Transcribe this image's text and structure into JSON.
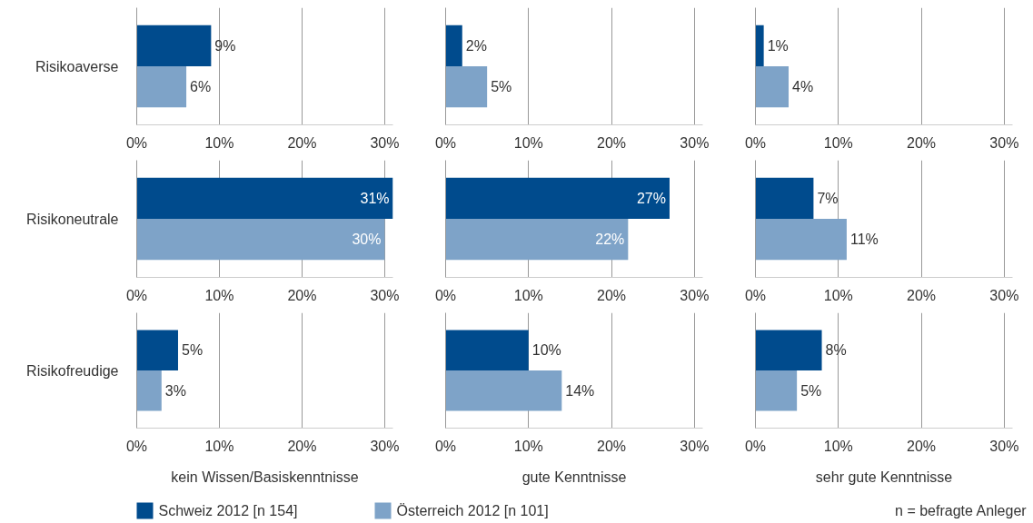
{
  "chart_data": [
    {
      "type": "bar",
      "orientation": "horizontal",
      "categories": [
        "Risikoaverse"
      ],
      "series": [
        {
          "color": "#004b8d",
          "values": [
            9
          ],
          "value_labels": [
            "9%"
          ]
        },
        {
          "color": "#7ea3c8",
          "values": [
            6
          ],
          "value_labels": [
            "6%"
          ]
        }
      ],
      "xlim": [
        0,
        31
      ],
      "xticks": [
        {
          "value": 0,
          "label": "0%"
        },
        {
          "value": 10,
          "label": "10%"
        },
        {
          "value": 20,
          "label": "20%"
        },
        {
          "value": 30,
          "label": "30%"
        }
      ],
      "grid": "x"
    },
    {
      "type": "bar",
      "orientation": "horizontal",
      "categories": [
        null
      ],
      "series": [
        {
          "color": "#004b8d",
          "values": [
            2
          ],
          "value_labels": [
            "2%"
          ]
        },
        {
          "color": "#7ea3c8",
          "values": [
            5
          ],
          "value_labels": [
            "5%"
          ]
        }
      ],
      "xlim": [
        0,
        31
      ],
      "xticks": [
        {
          "value": 0,
          "label": "0%"
        },
        {
          "value": 10,
          "label": "10%"
        },
        {
          "value": 20,
          "label": "20%"
        },
        {
          "value": 30,
          "label": "30%"
        }
      ],
      "grid": "x",
      "tick_labels": "x"
    },
    {
      "type": "bar",
      "orientation": "horizontal",
      "categories": [
        null
      ],
      "series": [
        {
          "color": "#004b8d",
          "values": [
            1
          ],
          "value_labels": [
            "1%"
          ]
        },
        {
          "color": "#7ea3c8",
          "values": [
            4
          ],
          "value_labels": [
            "4%"
          ]
        }
      ],
      "xlim": [
        0,
        31
      ],
      "xticks": [
        {
          "value": 0,
          "label": "0%"
        },
        {
          "value": 10,
          "label": "10%"
        },
        {
          "value": 20,
          "label": "20%"
        },
        {
          "value": 30,
          "label": "30%"
        }
      ],
      "grid": "x",
      "tick_labels": "x"
    },
    {
      "type": "bar",
      "orientation": "horizontal",
      "categories": [
        "Risikoneutrale"
      ],
      "series": [
        {
          "color": "#004b8d",
          "values": [
            31
          ],
          "value_labels": [
            "31%"
          ]
        },
        {
          "color": "#7ea3c8",
          "values": [
            30
          ],
          "value_labels": [
            "30%"
          ]
        }
      ],
      "xlim": [
        0,
        31
      ],
      "xticks": [
        {
          "value": 0,
          "label": "0%"
        },
        {
          "value": 10,
          "label": "10%"
        },
        {
          "value": 20,
          "label": "20%"
        },
        {
          "value": 30,
          "label": "30%"
        }
      ],
      "grid": "x"
    },
    {
      "type": "bar",
      "orientation": "horizontal",
      "categories": [
        null
      ],
      "series": [
        {
          "color": "#004b8d",
          "values": [
            27
          ],
          "value_labels": [
            "27%"
          ]
        },
        {
          "color": "#7ea3c8",
          "values": [
            22
          ],
          "value_labels": [
            "22%"
          ]
        }
      ],
      "xlim": [
        0,
        31
      ],
      "xticks": [
        {
          "value": 0,
          "label": "0%"
        },
        {
          "value": 10,
          "label": "10%"
        },
        {
          "value": 20,
          "label": "20%"
        },
        {
          "value": 30,
          "label": "30%"
        }
      ],
      "grid": "x",
      "tick_labels": "x"
    },
    {
      "type": "bar",
      "orientation": "horizontal",
      "categories": [
        null
      ],
      "series": [
        {
          "color": "#004b8d",
          "values": [
            7
          ],
          "value_labels": [
            "7%"
          ]
        },
        {
          "color": "#7ea3c8",
          "values": [
            11
          ],
          "value_labels": [
            "11%"
          ]
        }
      ],
      "xlim": [
        0,
        31
      ],
      "xticks": [
        {
          "value": 0,
          "label": "0%"
        },
        {
          "value": 10,
          "label": "10%"
        },
        {
          "value": 20,
          "label": "20%"
        },
        {
          "value": 30,
          "label": "30%"
        }
      ],
      "grid": "x",
      "tick_labels": "x"
    },
    {
      "type": "bar",
      "orientation": "horizontal",
      "categories": [
        "Risikofreudige"
      ],
      "series": [
        {
          "name": "Schweiz 2012 [n 154]",
          "color": "#004b8d",
          "values": [
            5
          ],
          "value_labels": [
            "5%"
          ]
        },
        {
          "name": "Österreich 2012 [n 101]",
          "color": "#7ea3c8",
          "values": [
            3
          ],
          "value_labels": [
            "3%"
          ]
        }
      ],
      "xlim": [
        0,
        31
      ],
      "xticks": [
        {
          "value": 0,
          "label": "0%"
        },
        {
          "value": 10,
          "label": "10%"
        },
        {
          "value": 20,
          "label": "20%"
        },
        {
          "value": 30,
          "label": "30%"
        }
      ],
      "grid": "x",
      "xlabel": "kein Wissen/Basiskenntnisse",
      "legend": "bottom"
    },
    {
      "type": "bar",
      "orientation": "horizontal",
      "categories": [
        null
      ],
      "series": [
        {
          "color": "#004b8d",
          "values": [
            10
          ],
          "value_labels": [
            "10%"
          ]
        },
        {
          "color": "#7ea3c8",
          "values": [
            14
          ],
          "value_labels": [
            "14%"
          ]
        }
      ],
      "xlim": [
        0,
        31
      ],
      "xticks": [
        {
          "value": 0,
          "label": "0%"
        },
        {
          "value": 10,
          "label": "10%"
        },
        {
          "value": 20,
          "label": "20%"
        },
        {
          "value": 30,
          "label": "30%"
        }
      ],
      "grid": "x",
      "tick_labels": "x",
      "xlabel": "gute Kenntnisse"
    },
    {
      "type": "bar",
      "orientation": "horizontal",
      "categories": [
        null
      ],
      "series": [
        {
          "color": "#004b8d",
          "values": [
            8
          ],
          "value_labels": [
            "8%"
          ]
        },
        {
          "color": "#7ea3c8",
          "values": [
            5
          ],
          "value_labels": [
            "5%"
          ]
        }
      ],
      "xlim": [
        0,
        31
      ],
      "xticks": [
        {
          "value": 0,
          "label": "0%"
        },
        {
          "value": 10,
          "label": "10%"
        },
        {
          "value": 20,
          "label": "20%"
        },
        {
          "value": 30,
          "label": "30%"
        }
      ],
      "grid": "x",
      "tick_labels": "x",
      "xlabel": "sehr gute Kenntnisse",
      "annotations": [
        "n = befragte Anleger"
      ]
    }
  ]
}
